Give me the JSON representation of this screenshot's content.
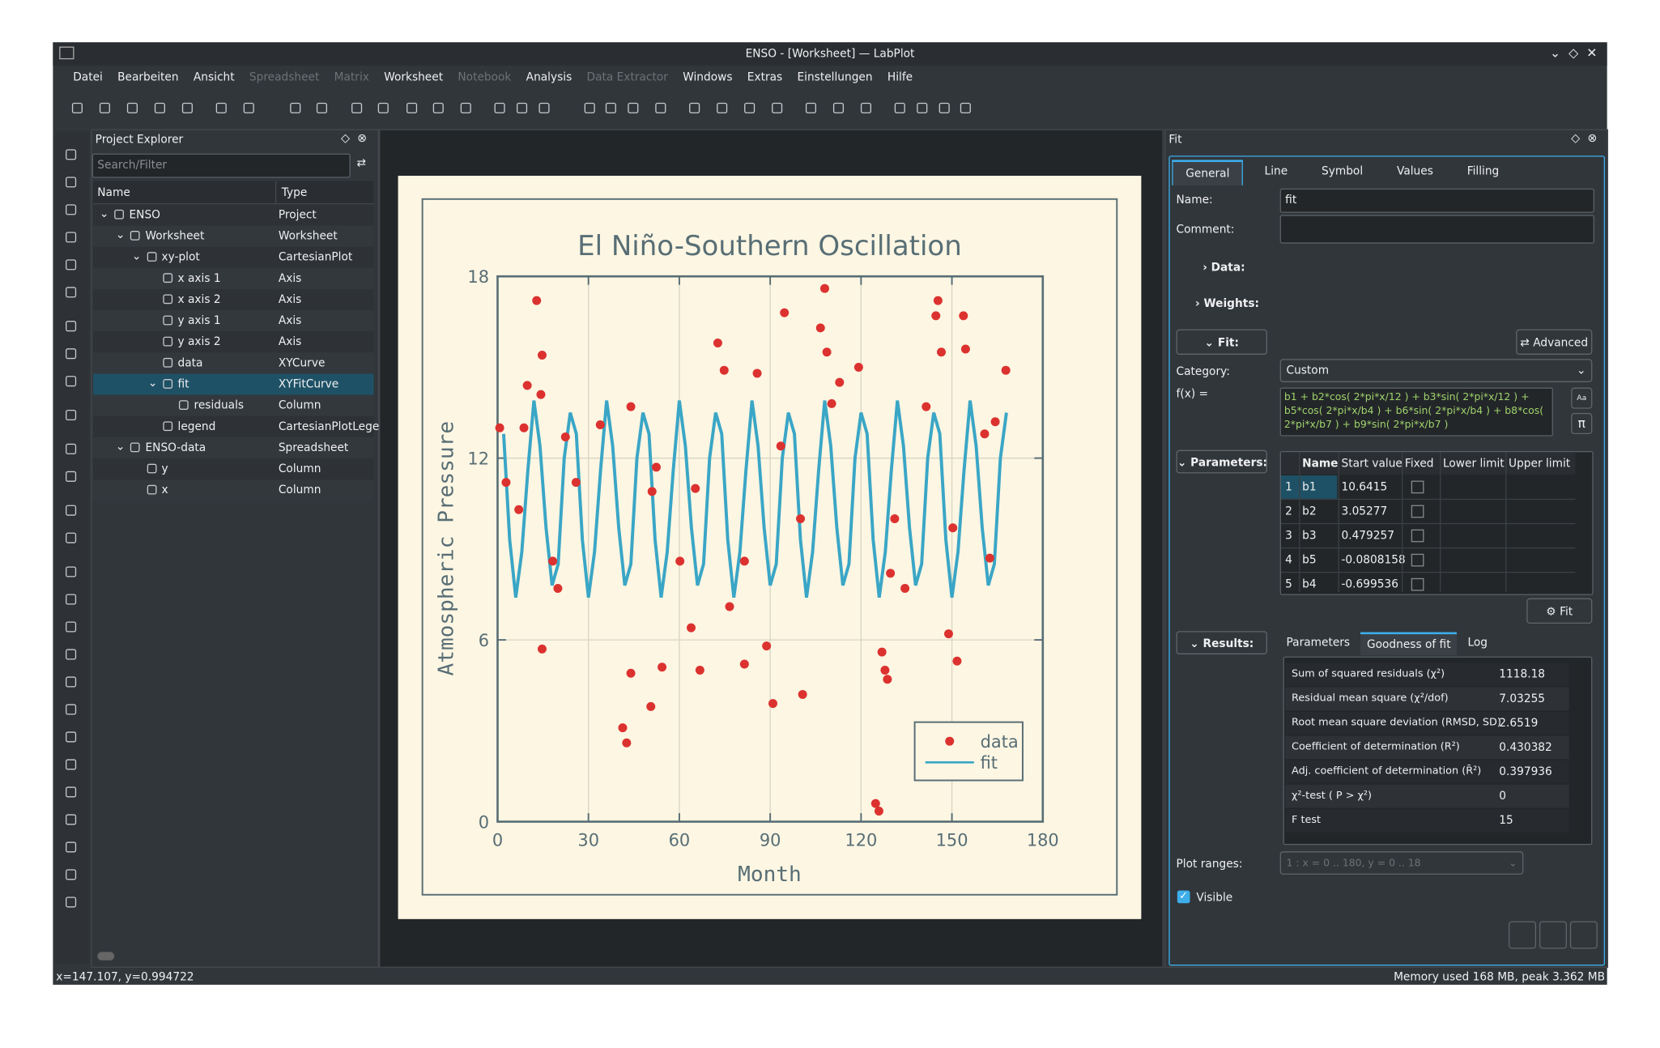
{
  "window": {
    "title": "ENSO - [Worksheet] — LabPlot"
  },
  "menu": [
    {
      "label": "Datei",
      "enabled": true
    },
    {
      "label": "Bearbeiten",
      "enabled": true
    },
    {
      "label": "Ansicht",
      "enabled": true
    },
    {
      "label": "Spreadsheet",
      "enabled": false
    },
    {
      "label": "Matrix",
      "enabled": false
    },
    {
      "label": "Worksheet",
      "enabled": true
    },
    {
      "label": "Notebook",
      "enabled": false
    },
    {
      "label": "Analysis",
      "enabled": true
    },
    {
      "label": "Data Extractor",
      "enabled": false
    },
    {
      "label": "Windows",
      "enabled": true
    },
    {
      "label": "Extras",
      "enabled": true
    },
    {
      "label": "Einstellungen",
      "enabled": true
    },
    {
      "label": "Hilfe",
      "enabled": true
    }
  ],
  "project_explorer": {
    "title": "Project Explorer",
    "search_placeholder": "Search/Filter",
    "columns": [
      "Name",
      "Type"
    ],
    "selected": 8,
    "rows": [
      {
        "name": "ENSO",
        "type": "Project"
      },
      {
        "name": "Worksheet",
        "type": "Worksheet"
      },
      {
        "name": "xy-plot",
        "type": "CartesianPlot"
      },
      {
        "name": "x axis 1",
        "type": "Axis"
      },
      {
        "name": "x axis 2",
        "type": "Axis"
      },
      {
        "name": "y axis 1",
        "type": "Axis"
      },
      {
        "name": "y axis 2",
        "type": "Axis"
      },
      {
        "name": "data",
        "type": "XYCurve"
      },
      {
        "name": "fit",
        "type": "XYFitCurve"
      },
      {
        "name": "residuals",
        "type": "Column"
      },
      {
        "name": "legend",
        "type": "CartesianPlotLegen"
      },
      {
        "name": "ENSO-data",
        "type": "Spreadsheet"
      },
      {
        "name": "y",
        "type": "Column"
      },
      {
        "name": "x",
        "type": "Column"
      }
    ]
  },
  "chart_data": {
    "type": "scatter",
    "title": "El Niño-Southern Oscillation",
    "xlabel": "Month",
    "ylabel": "Atmospheric Pressure",
    "xlim": [
      0,
      180
    ],
    "xticks": [
      0,
      30,
      60,
      90,
      120,
      150,
      180
    ],
    "ylim": [
      0,
      18
    ],
    "yticks": [
      0,
      6,
      12,
      18
    ],
    "grid": true,
    "legend": "lower right",
    "series": [
      {
        "name": "data",
        "type": "scatter",
        "color": "#dc322f",
        "x": [
          12.9,
          14.7,
          9.8,
          14.3,
          0.7,
          2.8,
          8.7,
          22.4,
          25.9,
          18.2,
          19.9,
          14.7,
          44,
          44,
          41.3,
          42.6,
          50.6,
          54.3,
          66.8,
          63.9,
          72.7,
          74.8,
          85.7,
          94.7,
          90.9,
          88.8,
          81.5,
          100.7,
          108,
          106.6,
          108.7,
          112.9,
          119.2,
          124.8,
          125.9,
          126.9,
          127.9,
          128.7,
          129.7,
          145.4,
          144.7,
          146.5,
          153.8,
          154.5,
          148.9,
          151.7,
          167.8,
          164.3,
          160.8,
          81.5,
          60.2,
          33.9,
          51,
          131.1,
          100,
          65.3,
          76.6,
          134.5,
          141.5,
          162.5,
          7,
          52.4,
          150.3,
          93.5,
          110.3
        ],
        "values": [
          17.2,
          15.4,
          14.4,
          14.1,
          13,
          11.2,
          13,
          12.7,
          11.2,
          8.6,
          7.7,
          5.7,
          13.7,
          4.9,
          3.1,
          2.6,
          3.8,
          5.1,
          5,
          6.4,
          15.8,
          14.9,
          14.8,
          16.8,
          3.9,
          5.8,
          5.2,
          4.2,
          17.6,
          16.3,
          15.5,
          14.5,
          15,
          0.6,
          0.35,
          5.6,
          5,
          4.7,
          8.2,
          17.2,
          16.7,
          15.5,
          16.7,
          15.6,
          6.2,
          5.3,
          14.9,
          13.2,
          12.8,
          8.6,
          8.6,
          13.1,
          10.9,
          10,
          10,
          11,
          7.1,
          7.7,
          13.7,
          8.7,
          10.3,
          11.7,
          9.7,
          12.4,
          13.8
        ]
      },
      {
        "name": "fit",
        "type": "line",
        "color": "#3aa6c6",
        "x": [
          2,
          4,
          6,
          8,
          10,
          12,
          14,
          16,
          18,
          20,
          22,
          24,
          26,
          28,
          30,
          32,
          34,
          36,
          38,
          40,
          42,
          44,
          46,
          48,
          50,
          52,
          54,
          56,
          58,
          60,
          62,
          64,
          66,
          68,
          70,
          72,
          74,
          76,
          78,
          80,
          82,
          84,
          86,
          88,
          90,
          92,
          94,
          96,
          98,
          100,
          102,
          104,
          106,
          108,
          110,
          112,
          114,
          116,
          118,
          120,
          122,
          124,
          126,
          128,
          130,
          132,
          134,
          136,
          138,
          140,
          142,
          144,
          146,
          148,
          150,
          152,
          154,
          156,
          158,
          160,
          162,
          164,
          166,
          168
        ],
        "values": [
          12.8,
          9.3,
          7.4,
          8.9,
          11.6,
          13.9,
          12.4,
          9.7,
          7.8,
          8.5,
          12.0,
          13.5,
          12.8,
          9.3,
          7.4,
          8.9,
          11.6,
          13.9,
          12.4,
          9.7,
          7.8,
          8.5,
          12.0,
          13.5,
          12.8,
          9.3,
          7.4,
          8.9,
          11.6,
          13.9,
          12.4,
          9.7,
          7.8,
          8.5,
          12.0,
          13.5,
          12.8,
          9.3,
          7.4,
          8.9,
          11.6,
          13.9,
          12.4,
          9.7,
          7.8,
          8.5,
          12.0,
          13.5,
          12.8,
          9.3,
          7.4,
          8.9,
          11.6,
          13.9,
          12.4,
          9.7,
          7.8,
          8.5,
          12.0,
          13.5,
          12.8,
          9.3,
          7.4,
          8.9,
          11.6,
          13.9,
          12.4,
          9.7,
          7.8,
          8.5,
          12.0,
          13.5,
          12.8,
          9.3,
          7.4,
          8.9,
          11.6,
          13.9,
          12.4,
          9.7,
          7.8,
          8.5,
          12.0,
          13.5
        ]
      }
    ]
  },
  "fit_panel": {
    "title": "Fit",
    "tabs": [
      "General",
      "Line",
      "Symbol",
      "Values",
      "Filling"
    ],
    "name_label": "Name:",
    "name": "fit",
    "comment_label": "Comment:",
    "data_label": "Data:",
    "weights_label": "Weights:",
    "fit_section": "Fit:",
    "advanced": "Advanced",
    "category_label": "Category:",
    "category": "Custom",
    "fx_label": "f(x) =",
    "formula": "b1 + b2*cos( 2*pi*x/12 ) + b3*sin( 2*pi*x/12 ) + b5*cos( 2*pi*x/b4 ) + b6*sin( 2*pi*x/b4 ) + b8*cos( 2*pi*x/b7 ) + b9*sin( 2*pi*x/b7 )",
    "parameters_label": "Parameters:",
    "parameter_columns": [
      "Name",
      "Start value",
      "Fixed",
      "Lower limit",
      "Upper limit"
    ],
    "parameters": [
      [
        "1",
        "b1",
        "10.6415"
      ],
      [
        "2",
        "b2",
        "3.05277"
      ],
      [
        "3",
        "b3",
        "0.479257"
      ],
      [
        "4",
        "b5",
        "-0.0808158"
      ],
      [
        "5",
        "b4",
        "-0.699536"
      ]
    ],
    "fit_button": "Fit",
    "results_label": "Results:",
    "result_tabs": [
      "Parameters",
      "Goodness of fit",
      "Log"
    ],
    "results": [
      [
        "Sum of squared residuals (χ²)",
        "1118.18"
      ],
      [
        "Residual mean square (χ²/dof)",
        "7.03255"
      ],
      [
        "Root mean square deviation (RMSD, SD)",
        "2.6519"
      ],
      [
        "Coefficient of determination (R²)",
        "0.430382"
      ],
      [
        "Adj. coefficient of determination (R̄²)",
        "0.397936"
      ],
      [
        "χ²-test ( P > χ²)",
        "0"
      ],
      [
        "F test",
        "15"
      ]
    ],
    "plot_ranges_label": "Plot ranges:",
    "plot_ranges": "1 : x = 0 .. 180, y = 0 .. 18",
    "visible": "Visible"
  },
  "status": {
    "position": "x=147.107, y=0.994722",
    "memory": "Memory used 168 MB, peak 3.362 MB"
  }
}
